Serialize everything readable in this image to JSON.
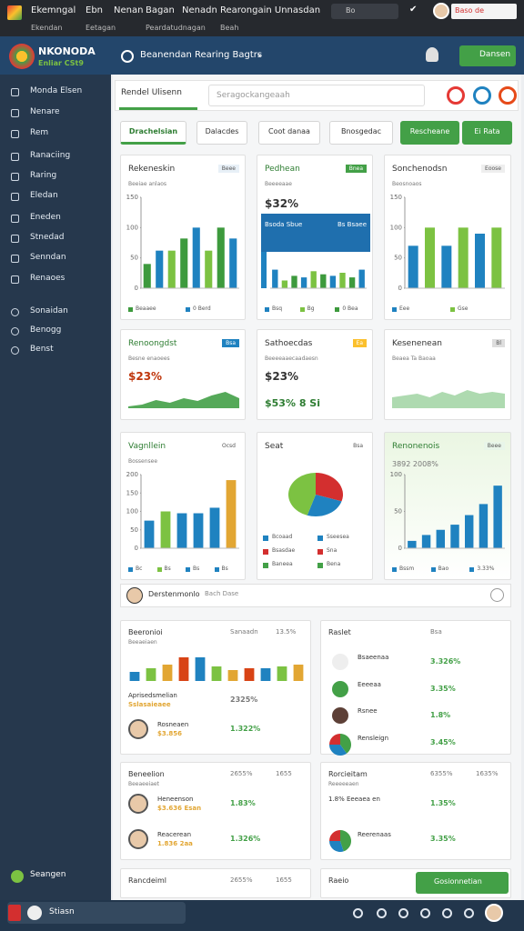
{
  "top_bar": {
    "items": [
      "Ekemngal",
      "Ebn",
      "Nenan",
      "Bagan",
      "Nenadn",
      "Rearongain Unnasdan"
    ],
    "sub_items": [
      "Ekendan",
      "Eetagan",
      "Peardatudnagan",
      "Beah"
    ],
    "search": "Bo",
    "badge": "Baso de"
  },
  "header": {
    "brand": "NKONODA",
    "brand_sub": "Enliar CSt9",
    "selector": "Beanendan Rearing Bagtrs",
    "button": "Dansen"
  },
  "sidebar": {
    "items": [
      "Monda Elsen",
      "Nenare",
      "Rem",
      "Ranaciing",
      "Raring",
      "Eledan",
      "Eneden",
      "Stnedad",
      "Senndan",
      "Renaoes"
    ],
    "items2": [
      "Sonaidan",
      "Benogg",
      "Benst"
    ],
    "footer": "Seangen",
    "status": "Stiasn"
  },
  "tabs": {
    "active": "Rendel Ulisenn",
    "search": "Seragockangeaah"
  },
  "filters": [
    "Drachelsian",
    "Dalacdes",
    "Coot danaa",
    "Bnosgedac",
    "Rescheane",
    "Ei Rata"
  ],
  "cards": [
    {
      "title": "Rekeneskin",
      "badge": "Beee",
      "subtitle": "Beeiae anlaos",
      "chart": {
        "type": "bar",
        "ylim": [
          0,
          150
        ],
        "yticks": [
          0,
          50,
          100,
          150
        ],
        "values": [
          40,
          62,
          62,
          82,
          100,
          62,
          100,
          82
        ],
        "colors": [
          "#3d9a3d",
          "#1f82c0",
          "#7cc242"
        ]
      },
      "legend": [
        "Beaaee",
        "0 Berd"
      ]
    },
    {
      "title": "Pedhean",
      "badge": "Bnea",
      "subtitle": "Beeeeaae",
      "big": "$32%",
      "chart": {
        "type": "bar",
        "banner": [
          "Bsoda Sbue",
          "Bs Bsaee"
        ],
        "ylim": [
          0,
          100
        ],
        "values": [
          60,
          25,
          40,
          35,
          55,
          45,
          40,
          50,
          35,
          60
        ],
        "colors": [
          "#1f82c0",
          "#7cc242",
          "#3d9a3d"
        ]
      },
      "legend": [
        "Bsq",
        "Bg",
        "0 Bea"
      ]
    },
    {
      "title": "Sonchenodsn",
      "badge": "Eoose",
      "subtitle": "Beosnoaos",
      "chart": {
        "type": "bar",
        "ylim": [
          0,
          150
        ],
        "yticks": [
          0,
          50,
          100,
          150
        ],
        "values": [
          70,
          100,
          70,
          100,
          90,
          100
        ],
        "colors": [
          "#1f82c0",
          "#7cc242"
        ]
      },
      "legend": [
        "Eee",
        "Gse"
      ]
    },
    {
      "title": "Renoongdst",
      "badge": "Bsa",
      "subtitle": "Besne enaoees",
      "big": "$23%",
      "chart": {
        "type": "area",
        "ylim": [
          0,
          100
        ],
        "values": [
          10,
          20,
          45,
          30,
          55,
          40,
          70,
          90,
          55
        ],
        "colors": [
          "#43a047"
        ]
      }
    },
    {
      "title": "Sathoecdas",
      "badge": "Ea",
      "subtitle": "Beeeeaaecaadaesn",
      "big": "$23%",
      "extra": "$53%  8 Si",
      "chart": null
    },
    {
      "title": "Kesenenean",
      "badge": "Bl",
      "subtitle": "Beaea Ta Baoaa",
      "chart": {
        "type": "area",
        "ylim": [
          0,
          100
        ],
        "values": [
          30,
          35,
          40,
          30,
          45,
          35,
          50,
          40,
          45,
          40
        ],
        "colors": [
          "#a5d6a7"
        ]
      }
    },
    {
      "title": "Vagnllein",
      "badge": "Ocsd",
      "subtitle": "Bossensee",
      "chart": {
        "type": "bar",
        "ylim": [
          0,
          200
        ],
        "yticks": [
          0,
          50,
          100,
          150,
          200
        ],
        "values": [
          75,
          100,
          95,
          95,
          110,
          185
        ],
        "colors": [
          "#1f82c0",
          "#7cc242",
          "#1f82c0",
          "#1f82c0",
          "#1f82c0",
          "#e2a633"
        ]
      },
      "legend": [
        "Bc",
        "Bs",
        "Bs",
        "Bs"
      ]
    },
    {
      "title": "Seat",
      "badge": "Bsa",
      "chart": {
        "type": "pie",
        "values": [
          30,
          25,
          45
        ],
        "colors": [
          "#d32f2f",
          "#1f82c0",
          "#7cc242"
        ]
      },
      "legend": [
        "Bcoaad",
        "Sseesea",
        "Bsasdae",
        "Sna",
        "Baneea",
        "Bena"
      ]
    },
    {
      "title": "Renonenois",
      "badge": "Beee",
      "subtitle": "3892 2008%",
      "chart": {
        "type": "bar",
        "ylim": [
          0,
          100
        ],
        "yticks": [
          0,
          50,
          100
        ],
        "values": [
          10,
          18,
          25,
          32,
          45,
          60,
          85
        ],
        "colors": [
          "#1f82c0"
        ]
      },
      "legend": [
        "Bssm",
        "Bao",
        "3.33%"
      ]
    }
  ],
  "strip": {
    "name": "Derstenmonlo",
    "meta": "Bach Dase"
  },
  "panels": [
    {
      "title": "Beeronioi",
      "subtitle": "Beeaeiaen",
      "meta": [
        "Sanaadn",
        "13.5%"
      ],
      "chart": {
        "type": "bar",
        "ylim": [
          0,
          100
        ],
        "values": [
          25,
          35,
          45,
          65,
          65,
          40,
          30,
          35,
          35,
          40,
          45
        ],
        "colors": [
          "#1f82c0",
          "#7cc242",
          "#e2a633",
          "#d84315"
        ]
      },
      "rows": [
        {
          "name": "Aprisedsmelian",
          "sub": "Sslasaieaee",
          "value": "2325%",
          "icon": "none"
        },
        {
          "name": "Rosneaen",
          "sub": "$3.856",
          "value": "1.322%",
          "icon": "avatar"
        }
      ]
    },
    {
      "title": "Raslet",
      "meta": [
        "Bsa"
      ],
      "rows": [
        {
          "name": "Bsaeenaa",
          "value": "3.326%",
          "icon": "dot"
        },
        {
          "name": "Eeeeaa",
          "value": "3.35%",
          "icon": "dot"
        },
        {
          "name": "Rsnee",
          "value": "1.8%",
          "icon": "dot"
        },
        {
          "name": "Rensleign",
          "value": "3.45%",
          "icon": "pie",
          "pie": [
            40,
            35,
            25
          ]
        }
      ]
    },
    {
      "title": "Beneelion",
      "subtitle": "Beeaeeiaet",
      "meta": [
        "2655%",
        "1655"
      ],
      "rows": [
        {
          "name": "Heneenson",
          "sub": "$3.636 Esan",
          "value": "1.83%",
          "icon": "avatar"
        },
        {
          "name": "Reacerean",
          "sub": "1.836 2aa",
          "value": "1.326%",
          "icon": "avatar"
        }
      ]
    },
    {
      "title": "Rorcieitam",
      "subtitle": "Reeeeeaen",
      "meta": [
        "6355%",
        "1635%"
      ],
      "rows": [
        {
          "name": "1.8%  Eeeaea en",
          "value": "1.35%",
          "icon": "none"
        },
        {
          "name": "Reerenaas",
          "value": "3.35%",
          "icon": "pie",
          "pie": [
            45,
            30,
            25
          ]
        }
      ]
    },
    {
      "title": "Rancdeiml",
      "meta": [
        "2655%",
        "1655"
      ],
      "rows": []
    },
    {
      "title": "Raeio",
      "meta": [],
      "button": "Gosionnetian",
      "rows": []
    }
  ]
}
